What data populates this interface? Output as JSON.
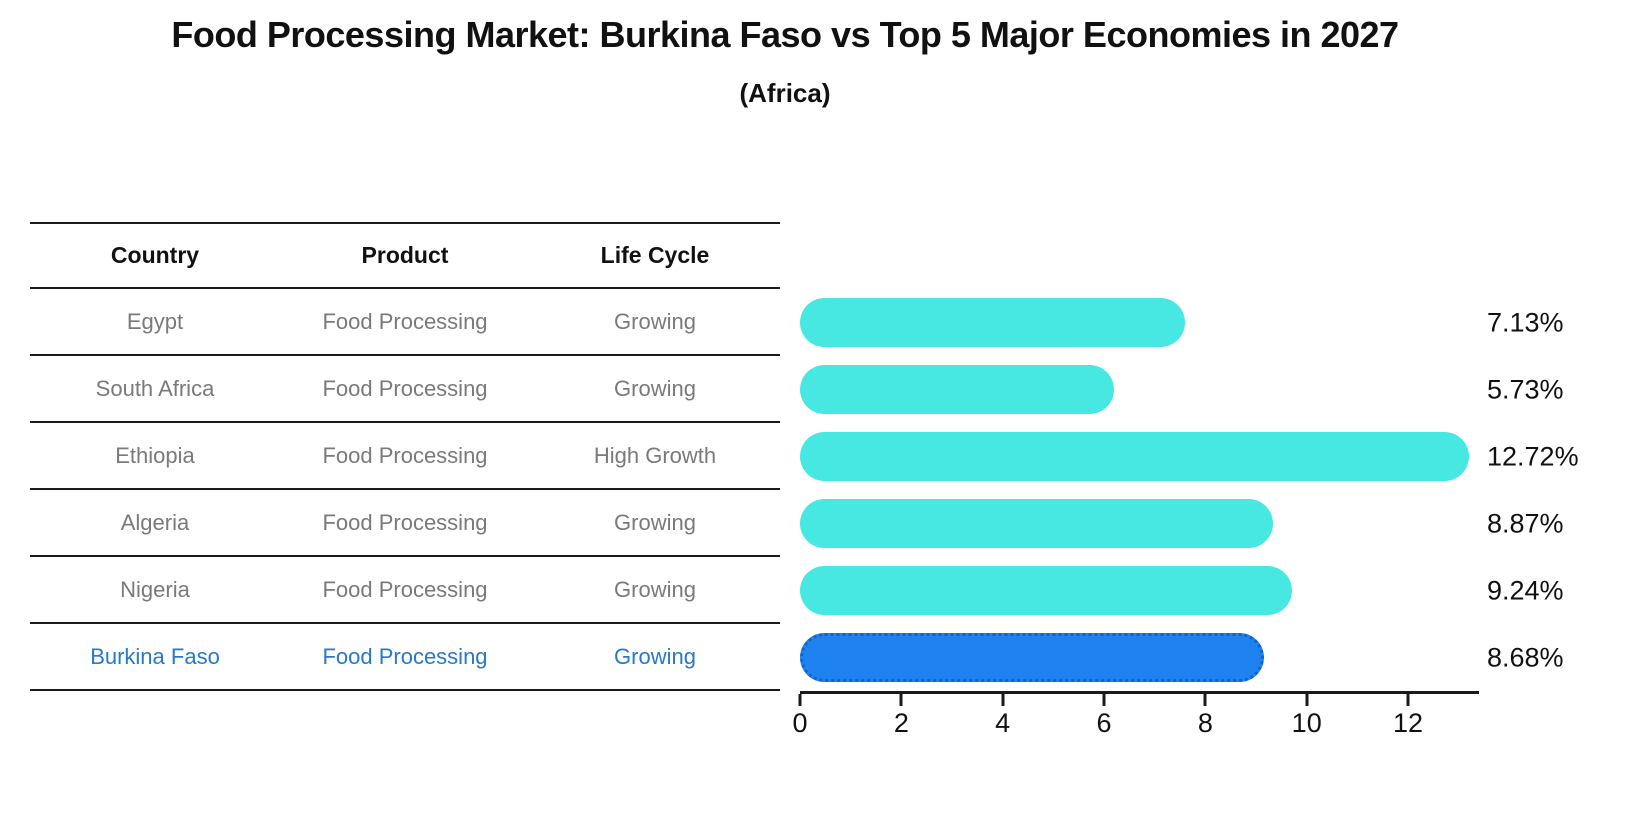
{
  "title": "Food Processing Market: Burkina Faso vs Top 5 Major Economies in 2027",
  "subtitle": "(Africa)",
  "table": {
    "headers": [
      "Country",
      "Product",
      "Life Cycle"
    ],
    "rows": [
      {
        "country": "Egypt",
        "product": "Food Processing",
        "life_cycle": "Growing",
        "highlight": false
      },
      {
        "country": "South Africa",
        "product": "Food Processing",
        "life_cycle": "Growing",
        "highlight": false
      },
      {
        "country": "Ethiopia",
        "product": "Food Processing",
        "life_cycle": "High Growth",
        "highlight": false
      },
      {
        "country": "Algeria",
        "product": "Food Processing",
        "life_cycle": "Growing",
        "highlight": false
      },
      {
        "country": "Nigeria",
        "product": "Food Processing",
        "life_cycle": "Growing",
        "highlight": false
      },
      {
        "country": "Burkina Faso",
        "product": "Food Processing",
        "life_cycle": "Growing",
        "highlight": true
      }
    ]
  },
  "chart_data": {
    "type": "bar",
    "orientation": "horizontal",
    "title": "Food Processing Market: Burkina Faso vs Top 5 Major Economies in 2027 (Africa)",
    "categories": [
      "Egypt",
      "South Africa",
      "Ethiopia",
      "Algeria",
      "Nigeria",
      "Burkina Faso"
    ],
    "values": [
      7.13,
      5.73,
      12.72,
      8.87,
      9.24,
      8.68
    ],
    "value_labels": [
      "7.13%",
      "5.73%",
      "12.72%",
      "8.87%",
      "9.24%",
      "8.68%"
    ],
    "xlabel": "",
    "ylabel": "",
    "xticks": [
      0,
      2,
      4,
      6,
      8,
      10,
      12
    ],
    "xlim": [
      0,
      13.4
    ],
    "grid": false,
    "legend": false,
    "highlight_index": 5,
    "bar_color": "#47E8E1",
    "highlight_bar_color": "#1E82F0",
    "highlight_border_color": "#1263C8",
    "highlight_text_color": "#2878CC"
  }
}
